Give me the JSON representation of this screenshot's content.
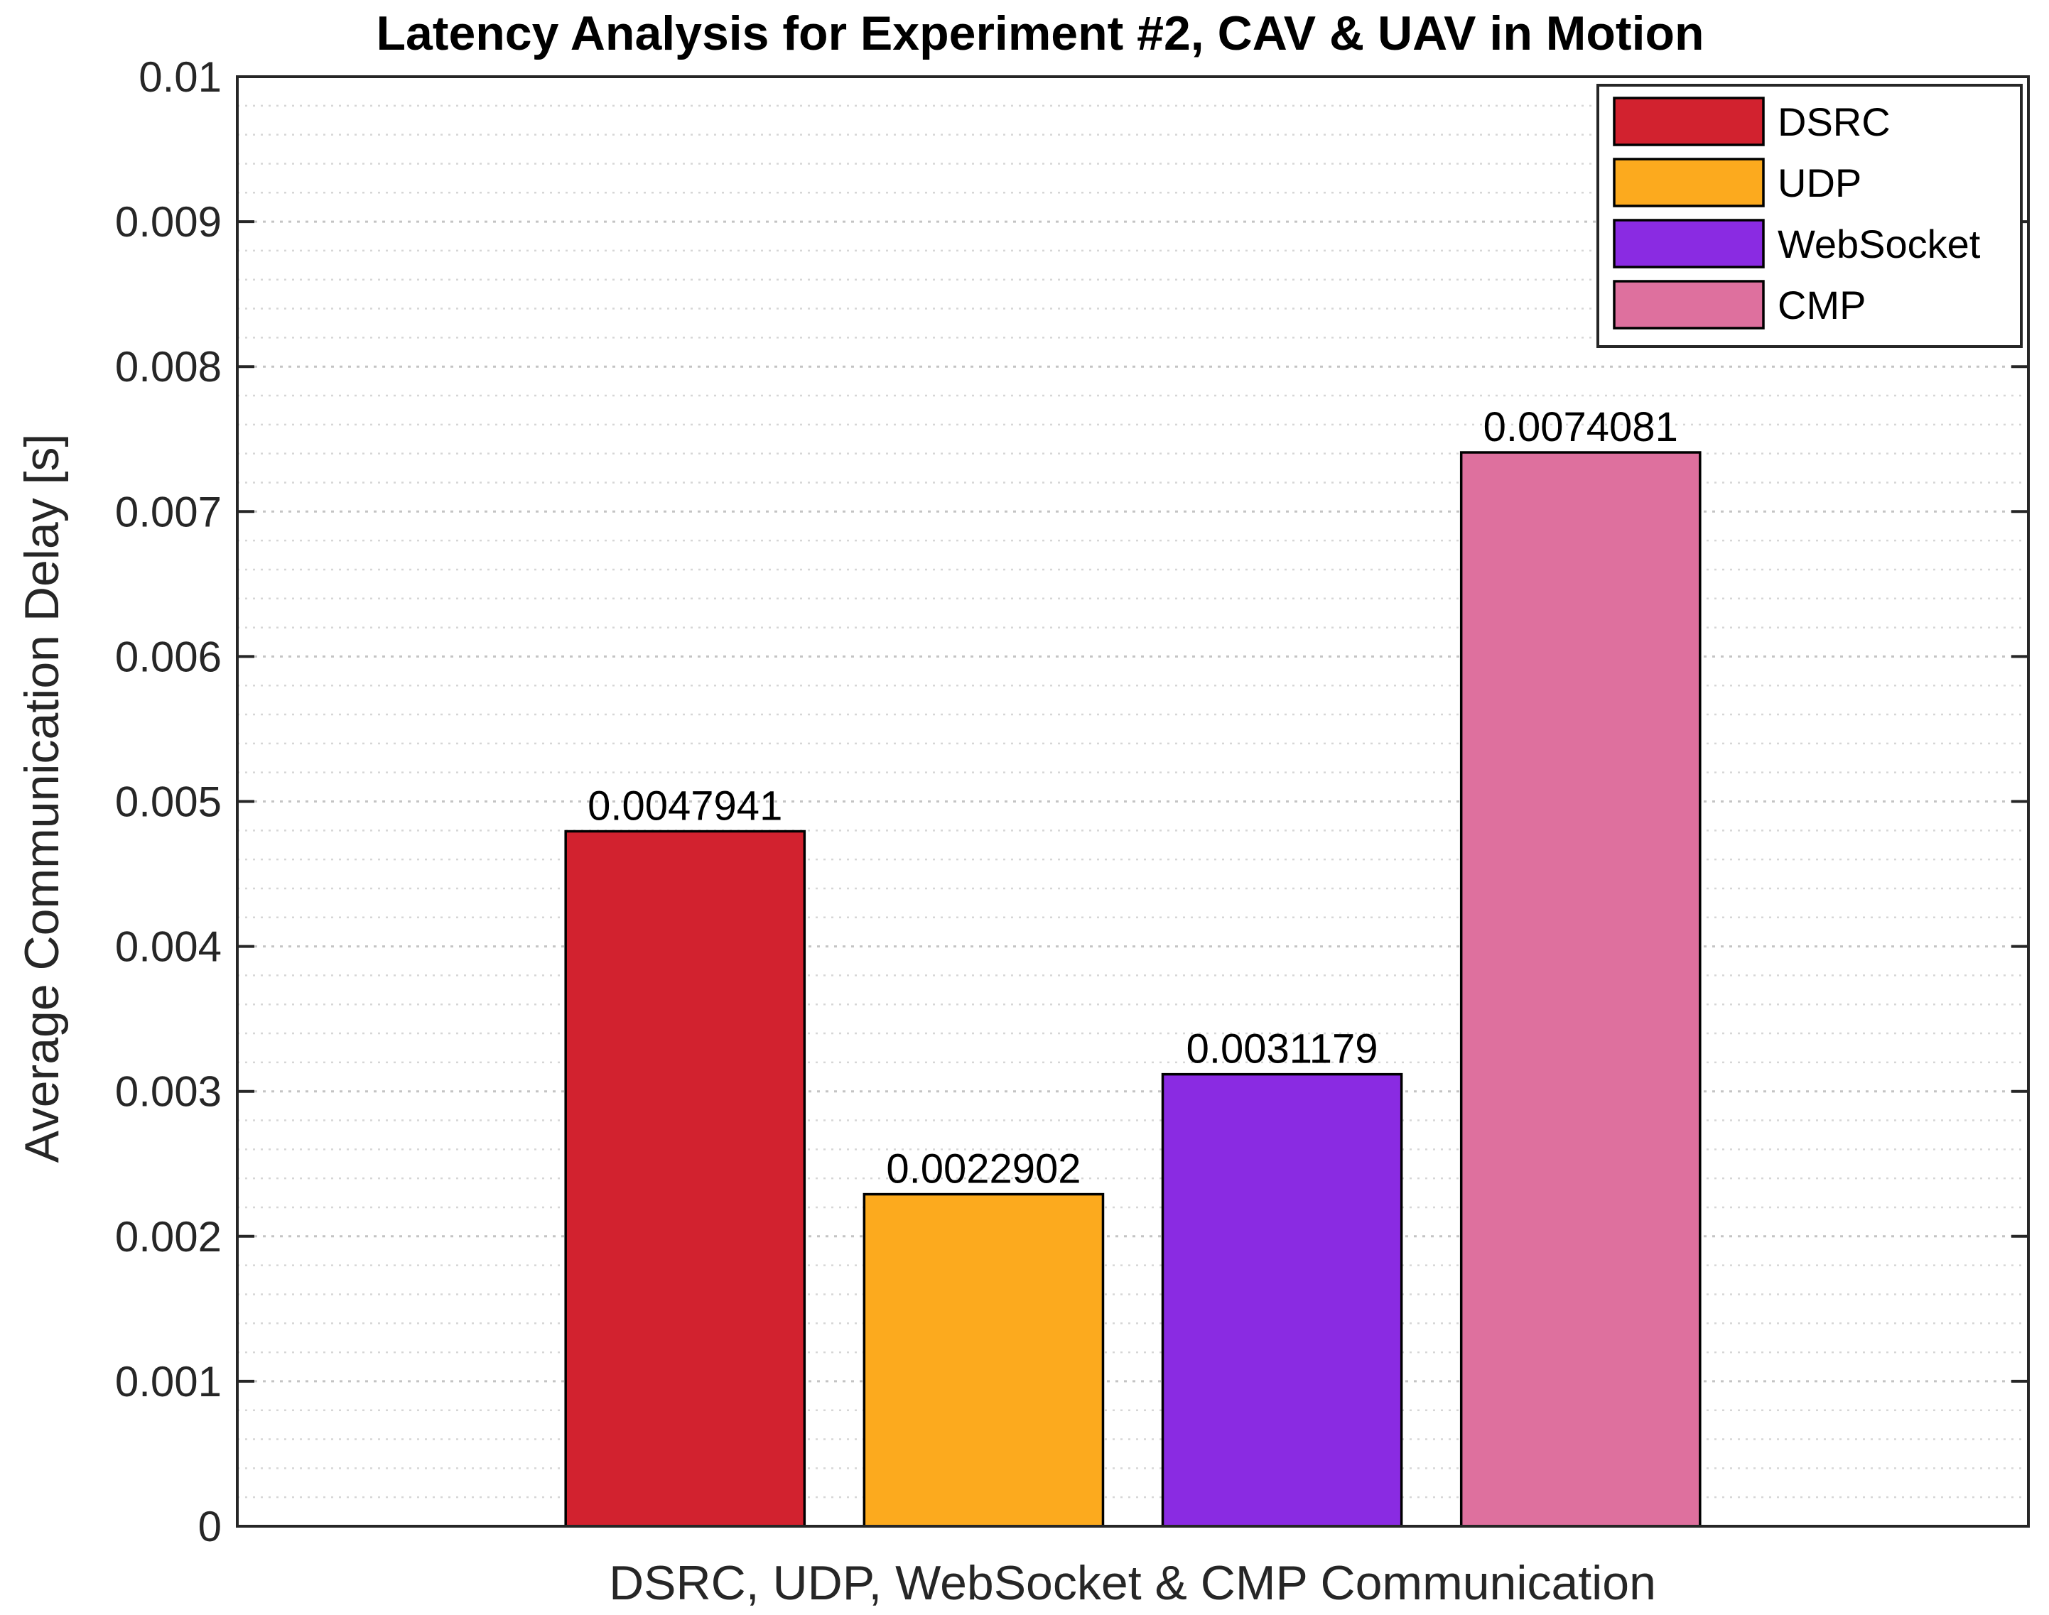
{
  "chart_data": {
    "type": "bar",
    "title": "Latency Analysis for Experiment #2, CAV & UAV in Motion",
    "xlabel": "DSRC, UDP, WebSocket & CMP Communication",
    "ylabel": "Average Communication Delay [s]",
    "ylim": [
      0,
      0.01
    ],
    "yticks": [
      0,
      0.001,
      0.002,
      0.003,
      0.004,
      0.005,
      0.006,
      0.007,
      0.008,
      0.009,
      0.01
    ],
    "ytick_labels": [
      "0",
      "0.001",
      "0.002",
      "0.003",
      "0.004",
      "0.005",
      "0.006",
      "0.007",
      "0.008",
      "0.009",
      "0.01"
    ],
    "grid": true,
    "minor_grid": true,
    "legend_position": "top-right",
    "series": [
      {
        "name": "DSRC",
        "value": 0.0047941,
        "label": "0.0047941",
        "color": "#D2222F"
      },
      {
        "name": "UDP",
        "value": 0.0022902,
        "label": "0.0022902",
        "color": "#FCAA1E"
      },
      {
        "name": "WebSocket",
        "value": 0.0031179,
        "label": "0.0031179",
        "color": "#8A2BE2"
      },
      {
        "name": "CMP",
        "value": 0.0074081,
        "label": "0.0074081",
        "color": "#DE709E"
      }
    ]
  }
}
